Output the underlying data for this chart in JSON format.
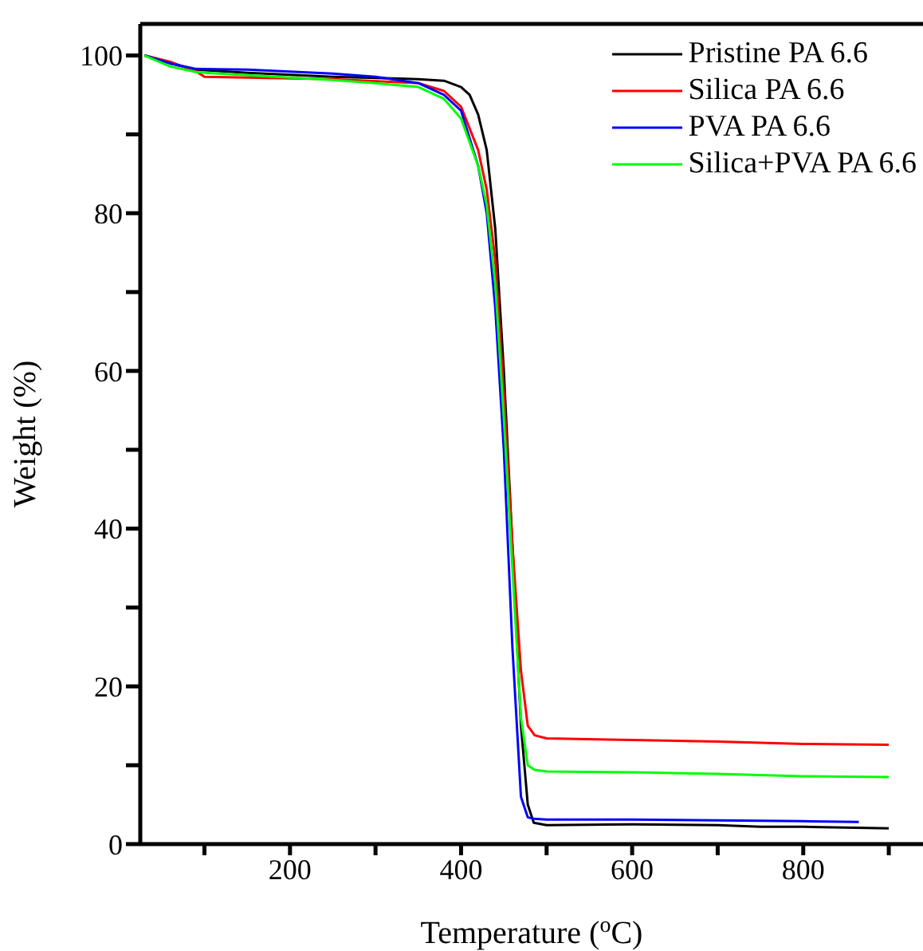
{
  "chart_data": {
    "type": "line",
    "xlabel": "Temperature ($^{o}$C)",
    "ylabel": "Weight (%)",
    "xlim": [
      25,
      940
    ],
    "ylim": [
      0,
      104
    ],
    "xticks": [
      {
        "value": 100,
        "label": null
      },
      200,
      {
        "value": 300,
        "label": null
      },
      400,
      {
        "value": 500,
        "label": null
      },
      600,
      {
        "value": 700,
        "label": null
      },
      800,
      {
        "value": 900,
        "label": null
      }
    ],
    "yticks": [
      0,
      {
        "value": 10,
        "label": null
      },
      20,
      {
        "value": 30,
        "label": null
      },
      40,
      {
        "value": 50,
        "label": null
      },
      60,
      {
        "value": 70,
        "label": null
      },
      80,
      {
        "value": 90,
        "label": null
      },
      100
    ],
    "legend": "top right",
    "grid": false,
    "marker": "none",
    "line_style": "solid",
    "series": [
      {
        "name": "Pristine PA 6.6",
        "color": "#000000",
        "x": [
          30,
          60,
          90,
          150,
          250,
          350,
          380,
          400,
          410,
          420,
          430,
          440,
          450,
          460,
          470,
          478,
          485,
          500,
          600,
          700,
          750,
          800,
          900
        ],
        "values": [
          100,
          99,
          98.2,
          97.8,
          97.3,
          97,
          96.8,
          96,
          95,
          92.5,
          88,
          78,
          60,
          38,
          15,
          5,
          2.7,
          2.4,
          2.5,
          2.4,
          2.2,
          2.2,
          2
        ]
      },
      {
        "name": "Silica PA 6.6",
        "color": "#ff0000",
        "x": [
          30,
          60,
          90,
          100,
          150,
          250,
          350,
          380,
          400,
          420,
          430,
          440,
          450,
          460,
          470,
          478,
          486,
          500,
          600,
          700,
          800,
          900
        ],
        "values": [
          100,
          99.2,
          98,
          97.3,
          97.2,
          97,
          96.5,
          95.5,
          93.5,
          88,
          83,
          74,
          57,
          38,
          22,
          15,
          13.8,
          13.4,
          13.2,
          13,
          12.7,
          12.6
        ]
      },
      {
        "name": "PVA PA 6.6",
        "color": "#0000ff",
        "x": [
          30,
          60,
          90,
          150,
          250,
          300,
          350,
          380,
          400,
          420,
          430,
          440,
          450,
          460,
          470,
          478,
          485,
          500,
          600,
          700,
          800,
          865
        ],
        "values": [
          100,
          99,
          98.3,
          98.2,
          97.7,
          97.3,
          96.5,
          95,
          93,
          86,
          80,
          68,
          50,
          25,
          6,
          3.4,
          3.2,
          3.1,
          3.1,
          3,
          2.9,
          2.8
        ]
      },
      {
        "name": "Silica+PVA PA 6.6",
        "color": "#00ff00",
        "x": [
          30,
          60,
          90,
          100,
          150,
          250,
          300,
          350,
          380,
          400,
          420,
          430,
          440,
          450,
          460,
          470,
          478,
          486,
          500,
          600,
          700,
          800,
          900
        ],
        "values": [
          100,
          98.6,
          97.9,
          97.8,
          97.5,
          96.9,
          96.5,
          96,
          94.5,
          92,
          86,
          81,
          71,
          54,
          35,
          16,
          10,
          9.4,
          9.2,
          9.1,
          8.9,
          8.6,
          8.5
        ]
      }
    ]
  }
}
